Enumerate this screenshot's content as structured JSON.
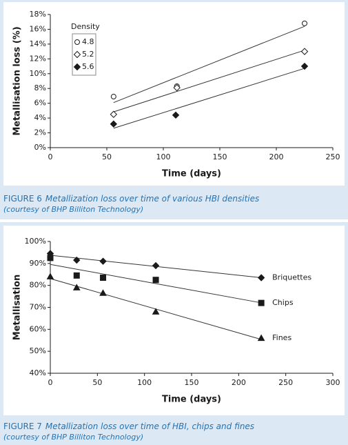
{
  "chart_data": [
    {
      "type": "scatter",
      "figure_label": "FIGURE 6",
      "caption": "Metallization loss over time of various HBI densities",
      "credit": "(courtesy of BHP Billiton Technology)",
      "xlabel": "Time (days)",
      "ylabel": "Metallisation loss (%)",
      "xlim": [
        0,
        250
      ],
      "xticks": [
        0,
        50,
        100,
        150,
        200,
        250
      ],
      "ylim": [
        0,
        18
      ],
      "yticks": [
        {
          "value": 0,
          "label": "0%"
        },
        {
          "value": 2,
          "label": "2%"
        },
        {
          "value": 4,
          "label": "4%"
        },
        {
          "value": 6,
          "label": "6%"
        },
        {
          "value": 8,
          "label": "8%"
        },
        {
          "value": 10,
          "label": "10%"
        },
        {
          "value": 12,
          "label": "12%"
        },
        {
          "value": 14,
          "label": "14%"
        },
        {
          "value": 16,
          "label": "16%"
        },
        {
          "value": 18,
          "label": "18%"
        }
      ],
      "legend": "upper left",
      "legend_title": "Density",
      "trendline": true,
      "series": [
        {
          "name": "4.8",
          "marker": "circle-open",
          "color": "#1a1a1a",
          "x": [
            56,
            112,
            225
          ],
          "values": [
            6.9,
            8.3,
            16.8
          ]
        },
        {
          "name": "5.2",
          "marker": "diamond-open",
          "color": "#1a1a1a",
          "x": [
            56,
            112,
            225
          ],
          "values": [
            4.5,
            8.1,
            13.0
          ]
        },
        {
          "name": "5.6",
          "marker": "diamond",
          "color": "#1a1a1a",
          "x": [
            56,
            111,
            225
          ],
          "values": [
            3.2,
            4.4,
            11.0
          ]
        }
      ]
    },
    {
      "type": "scatter",
      "figure_label": "FIGURE 7",
      "caption": "Metallization loss over time of HBI, chips and fines",
      "credit": "(courtesy of BHP Billiton Technology)",
      "xlabel": "Time (days)",
      "ylabel": "Metallisation",
      "xlim": [
        0,
        300
      ],
      "xticks": [
        0,
        50,
        100,
        150,
        200,
        250,
        300
      ],
      "ylim": [
        40,
        100
      ],
      "yticks": [
        {
          "value": 40,
          "label": "40%"
        },
        {
          "value": 50,
          "label": "50%"
        },
        {
          "value": 60,
          "label": "60%"
        },
        {
          "value": 70,
          "label": "70%"
        },
        {
          "value": 80,
          "label": "80%"
        },
        {
          "value": 90,
          "label": "90%"
        },
        {
          "value": 100,
          "label": "100%"
        }
      ],
      "legend": "line end",
      "trendline": true,
      "series": [
        {
          "name": "Briquettes",
          "marker": "diamond",
          "color": "#1a1a1a",
          "x": [
            0,
            28,
            56,
            112,
            224
          ],
          "values": [
            94.5,
            91.5,
            91,
            89,
            83.5
          ]
        },
        {
          "name": "Chips",
          "marker": "square",
          "color": "#1a1a1a",
          "x": [
            0,
            28,
            56,
            112,
            224
          ],
          "values": [
            92.5,
            84.5,
            83.5,
            82.5,
            72
          ]
        },
        {
          "name": "Fines",
          "marker": "triangle",
          "color": "#1a1a1a",
          "x": [
            0,
            28,
            56,
            112,
            224
          ],
          "values": [
            84,
            79,
            76.5,
            68,
            56
          ]
        }
      ]
    }
  ]
}
